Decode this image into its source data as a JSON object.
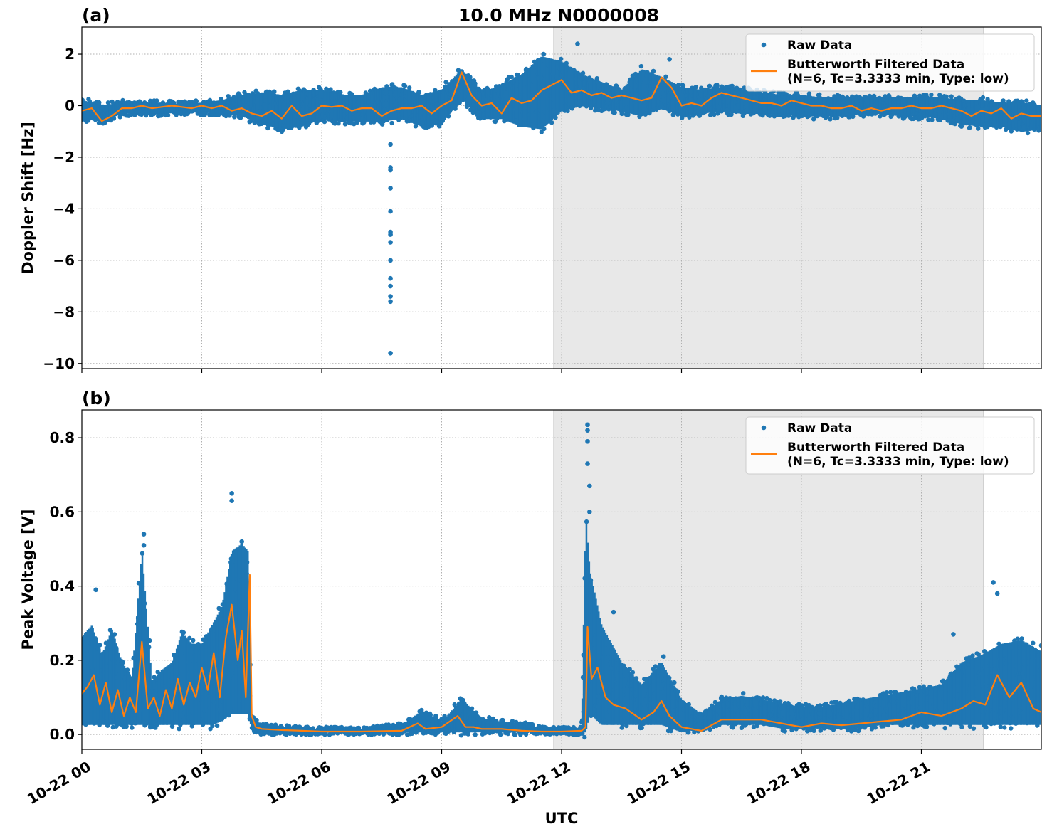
{
  "figure": {
    "title": "10.0 MHz N0000008",
    "xlabel": "UTC"
  },
  "colors": {
    "raw": "#1f77b4",
    "filtered": "#ff7f0e",
    "shade": "#e8e8e8",
    "grid": "#b0b0b0"
  },
  "chart_data": [
    {
      "type": "scatter",
      "panel_label": "(a)",
      "ylabel": "Doppler Shift [Hz]",
      "xlim_hours": [
        0,
        24
      ],
      "ylim": [
        -10.2,
        3.05
      ],
      "yticks": [
        2,
        0,
        -2,
        -4,
        -6,
        -8,
        -10
      ],
      "ytick_labels": [
        "2",
        "0",
        "−2",
        "−4",
        "−6",
        "−8",
        "−10"
      ],
      "xticks_hours": [
        0,
        3,
        6,
        9,
        12,
        15,
        18,
        21
      ],
      "xtick_labels": [
        "",
        "",
        "",
        "",
        "",
        "",
        "",
        ""
      ],
      "shaded_span_hours": [
        11.8,
        22.55
      ],
      "grid": true,
      "legend_position": "upper right",
      "legend": {
        "raw_label": "Raw Data",
        "filtered_label_1": "Butterworth Filtered Data",
        "filtered_label_2": "(N=6, Tc=3.3333 min, Type: low)"
      },
      "series": [
        {
          "name": "Raw Data",
          "kind": "band",
          "x_hours": [
            0,
            0.5,
            1,
            1.5,
            2,
            2.5,
            3,
            3.5,
            4,
            4.5,
            5,
            5.5,
            6,
            6.5,
            7,
            7.5,
            8,
            8.5,
            9,
            9.5,
            10,
            10.5,
            11,
            11.5,
            12,
            12.5,
            13,
            13.5,
            14,
            14.5,
            15,
            15.5,
            16,
            16.5,
            17,
            17.5,
            18,
            18.5,
            19,
            19.5,
            20,
            20.5,
            21,
            21.5,
            22,
            22.5,
            23,
            23.5,
            24
          ],
          "lower": [
            -0.6,
            -0.7,
            -0.4,
            -0.35,
            -0.4,
            -0.35,
            -0.35,
            -0.4,
            -0.5,
            -0.8,
            -1.0,
            -0.9,
            -0.6,
            -0.7,
            -0.7,
            -0.7,
            -0.6,
            -0.9,
            -0.8,
            0.2,
            -0.6,
            -0.6,
            -0.9,
            -1.0,
            -0.3,
            -0.1,
            -0.2,
            -0.3,
            -0.5,
            -0.2,
            -0.5,
            -0.4,
            -0.3,
            -0.4,
            -0.4,
            -0.4,
            -0.5,
            -0.5,
            -0.5,
            -0.4,
            -0.4,
            -0.5,
            -0.5,
            -0.6,
            -0.8,
            -0.9,
            -0.9,
            -1.1,
            -1.0
          ],
          "upper": [
            0.3,
            0.1,
            0.2,
            0.2,
            0.2,
            0.15,
            0.2,
            0.3,
            0.5,
            0.6,
            0.5,
            0.7,
            0.7,
            0.5,
            0.5,
            0.8,
            0.8,
            0.5,
            0.7,
            1.5,
            0.6,
            0.9,
            1.3,
            2.0,
            1.8,
            1.3,
            1.0,
            0.7,
            1.5,
            1.2,
            0.8,
            0.7,
            0.8,
            0.7,
            0.6,
            0.5,
            0.5,
            0.4,
            0.4,
            0.4,
            0.4,
            0.4,
            0.4,
            0.4,
            0.3,
            0.3,
            0.2,
            0.2,
            0.1
          ]
        },
        {
          "name": "Raw Data",
          "kind": "outliers",
          "x_hours": [
            7.72,
            7.72,
            7.72,
            7.72,
            7.72,
            7.72,
            7.72,
            7.72,
            7.72,
            7.72,
            7.72,
            7.72,
            7.72,
            7.72,
            7.72,
            7.72,
            11.55,
            12.4,
            14.7
          ],
          "y": [
            -1.5,
            -2.4,
            -2.5,
            -3.2,
            -4.1,
            -4.9,
            -5.0,
            -5.3,
            -6.0,
            -6.7,
            -7.0,
            -7.4,
            -7.6,
            -9.6,
            -0.2,
            0.5,
            2.0,
            2.4,
            1.8
          ]
        },
        {
          "name": "Butterworth Filtered Data",
          "kind": "line",
          "x_hours": [
            0,
            0.25,
            0.5,
            0.75,
            1,
            1.25,
            1.5,
            1.75,
            2,
            2.25,
            2.5,
            2.75,
            3,
            3.25,
            3.5,
            3.75,
            4,
            4.25,
            4.5,
            4.75,
            5,
            5.25,
            5.5,
            5.75,
            6,
            6.25,
            6.5,
            6.75,
            7,
            7.25,
            7.5,
            7.75,
            8,
            8.25,
            8.5,
            8.75,
            9,
            9.25,
            9.5,
            9.75,
            10,
            10.25,
            10.5,
            10.75,
            11,
            11.25,
            11.5,
            11.75,
            12,
            12.25,
            12.5,
            12.75,
            13,
            13.25,
            13.5,
            13.75,
            14,
            14.25,
            14.5,
            14.75,
            15,
            15.25,
            15.5,
            15.75,
            16,
            16.25,
            16.5,
            16.75,
            17,
            17.25,
            17.5,
            17.75,
            18,
            18.25,
            18.5,
            18.75,
            19,
            19.25,
            19.5,
            19.75,
            20,
            20.25,
            20.5,
            20.75,
            21,
            21.25,
            21.5,
            21.75,
            22,
            22.25,
            22.5,
            22.75,
            23,
            23.25,
            23.5,
            23.75,
            24
          ],
          "y": [
            -0.2,
            -0.1,
            -0.6,
            -0.4,
            -0.1,
            -0.1,
            0.0,
            -0.1,
            -0.05,
            0.0,
            -0.05,
            -0.1,
            0.0,
            -0.1,
            0.0,
            -0.2,
            -0.1,
            -0.3,
            -0.4,
            -0.2,
            -0.5,
            0.0,
            -0.4,
            -0.3,
            0.0,
            -0.05,
            0.0,
            -0.2,
            -0.1,
            -0.1,
            -0.4,
            -0.2,
            -0.1,
            -0.1,
            0.0,
            -0.3,
            0.0,
            0.2,
            1.3,
            0.4,
            0.0,
            0.1,
            -0.3,
            0.3,
            0.1,
            0.2,
            0.6,
            0.8,
            1.0,
            0.5,
            0.6,
            0.4,
            0.5,
            0.3,
            0.4,
            0.3,
            0.2,
            0.3,
            1.1,
            0.7,
            0.0,
            0.1,
            0.0,
            0.3,
            0.5,
            0.4,
            0.3,
            0.2,
            0.1,
            0.1,
            0.0,
            0.2,
            0.1,
            0.0,
            0.0,
            -0.1,
            -0.1,
            0.0,
            -0.2,
            -0.1,
            -0.2,
            -0.1,
            -0.1,
            0.0,
            -0.1,
            -0.1,
            0.0,
            -0.1,
            -0.2,
            -0.4,
            -0.2,
            -0.3,
            -0.1,
            -0.5,
            -0.3,
            -0.4,
            -0.4
          ]
        }
      ]
    },
    {
      "type": "scatter",
      "panel_label": "(b)",
      "ylabel": "Peak Voltage [V]",
      "xlim_hours": [
        0,
        24
      ],
      "ylim": [
        -0.04,
        0.875
      ],
      "yticks": [
        0.0,
        0.2,
        0.4,
        0.6,
        0.8
      ],
      "ytick_labels": [
        "0.0",
        "0.2",
        "0.4",
        "0.6",
        "0.8"
      ],
      "xticks_hours": [
        0,
        3,
        6,
        9,
        12,
        15,
        18,
        21
      ],
      "xtick_labels": [
        "10-22 00",
        "10-22 03",
        "10-22 06",
        "10-22 09",
        "10-22 12",
        "10-22 15",
        "10-22 18",
        "10-22 21"
      ],
      "shaded_span_hours": [
        11.8,
        22.55
      ],
      "grid": true,
      "legend_position": "upper right",
      "legend": {
        "raw_label": "Raw Data",
        "filtered_label_1": "Butterworth Filtered Data",
        "filtered_label_2": "(N=6, Tc=3.3333 min, Type: low)"
      },
      "series": [
        {
          "name": "Raw Data",
          "kind": "band",
          "x_hours": [
            0,
            0.25,
            0.5,
            0.75,
            1,
            1.25,
            1.5,
            1.75,
            2,
            2.25,
            2.5,
            2.75,
            3,
            3.25,
            3.5,
            3.75,
            4,
            4.15,
            4.25,
            4.5,
            5,
            5.5,
            6,
            7,
            8,
            8.5,
            9,
            9.5,
            10,
            10.5,
            11,
            11.5,
            12,
            12.5,
            12.6,
            12.7,
            13,
            13.5,
            14,
            14.5,
            15,
            15.5,
            16,
            16.5,
            17,
            17.5,
            18,
            18.5,
            19,
            19.5,
            20,
            20.5,
            21,
            21.5,
            22,
            22.5,
            23,
            23.5,
            24
          ],
          "lower": [
            0.02,
            0.02,
            0.02,
            0.02,
            0.02,
            0.02,
            0.02,
            0.02,
            0.02,
            0.02,
            0.02,
            0.02,
            0.02,
            0.02,
            0.03,
            0.05,
            0.05,
            0.05,
            0.01,
            0.0,
            0.0,
            0.0,
            0.0,
            0.0,
            0.0,
            0.0,
            0.0,
            0.0,
            0.0,
            0.0,
            0.0,
            0.0,
            0.0,
            0.0,
            0.0,
            0.05,
            0.02,
            0.02,
            0.02,
            0.02,
            0.0,
            0.01,
            0.02,
            0.02,
            0.02,
            0.01,
            0.01,
            0.01,
            0.01,
            0.01,
            0.02,
            0.02,
            0.02,
            0.02,
            0.02,
            0.02,
            0.02,
            0.02,
            0.02
          ],
          "upper": [
            0.27,
            0.3,
            0.22,
            0.29,
            0.2,
            0.16,
            0.5,
            0.15,
            0.18,
            0.2,
            0.28,
            0.25,
            0.25,
            0.3,
            0.35,
            0.5,
            0.52,
            0.5,
            0.05,
            0.03,
            0.025,
            0.02,
            0.02,
            0.02,
            0.03,
            0.07,
            0.04,
            0.1,
            0.05,
            0.04,
            0.035,
            0.02,
            0.02,
            0.02,
            0.6,
            0.45,
            0.3,
            0.2,
            0.14,
            0.2,
            0.1,
            0.06,
            0.1,
            0.11,
            0.1,
            0.09,
            0.08,
            0.08,
            0.09,
            0.1,
            0.11,
            0.12,
            0.13,
            0.14,
            0.2,
            0.22,
            0.25,
            0.26,
            0.23
          ]
        },
        {
          "name": "Raw Data",
          "kind": "outliers",
          "x_hours": [
            0.35,
            1.55,
            1.55,
            3.75,
            3.75,
            4.0,
            12.65,
            12.65,
            12.65,
            12.65,
            12.7,
            12.7,
            13.3,
            14.55,
            21.8,
            22.8,
            22.9,
            24.0
          ],
          "y": [
            0.39,
            0.54,
            0.51,
            0.65,
            0.63,
            0.52,
            0.835,
            0.82,
            0.79,
            0.73,
            0.67,
            0.6,
            0.33,
            0.21,
            0.27,
            0.41,
            0.38,
            0.24
          ]
        },
        {
          "name": "Butterworth Filtered Data",
          "kind": "line",
          "x_hours": [
            0,
            0.15,
            0.3,
            0.45,
            0.6,
            0.75,
            0.9,
            1.05,
            1.2,
            1.35,
            1.5,
            1.65,
            1.8,
            1.95,
            2.1,
            2.25,
            2.4,
            2.55,
            2.7,
            2.85,
            3.0,
            3.15,
            3.3,
            3.45,
            3.6,
            3.75,
            3.9,
            4.0,
            4.1,
            4.2,
            4.25,
            4.35,
            4.5,
            5,
            5.5,
            6,
            7,
            8,
            8.4,
            8.6,
            9,
            9.4,
            9.6,
            9.8,
            10,
            10.5,
            11,
            11.5,
            12,
            12.5,
            12.6,
            12.65,
            12.75,
            12.9,
            13.1,
            13.3,
            13.6,
            14,
            14.3,
            14.5,
            14.7,
            15,
            15.5,
            16,
            16.5,
            17,
            17.5,
            18,
            18.5,
            19,
            19.5,
            20,
            20.5,
            21,
            21.5,
            22,
            22.3,
            22.6,
            22.9,
            23.2,
            23.5,
            23.8,
            24
          ],
          "y": [
            0.11,
            0.13,
            0.16,
            0.08,
            0.14,
            0.06,
            0.12,
            0.05,
            0.1,
            0.06,
            0.25,
            0.07,
            0.1,
            0.05,
            0.12,
            0.07,
            0.15,
            0.08,
            0.14,
            0.1,
            0.18,
            0.12,
            0.22,
            0.1,
            0.26,
            0.35,
            0.2,
            0.28,
            0.1,
            0.43,
            0.05,
            0.02,
            0.015,
            0.012,
            0.01,
            0.008,
            0.008,
            0.01,
            0.03,
            0.015,
            0.02,
            0.05,
            0.02,
            0.02,
            0.015,
            0.015,
            0.01,
            0.008,
            0.008,
            0.01,
            0.02,
            0.29,
            0.15,
            0.18,
            0.1,
            0.08,
            0.07,
            0.04,
            0.06,
            0.09,
            0.05,
            0.02,
            0.01,
            0.04,
            0.04,
            0.04,
            0.03,
            0.02,
            0.03,
            0.025,
            0.03,
            0.035,
            0.04,
            0.06,
            0.05,
            0.07,
            0.09,
            0.08,
            0.16,
            0.1,
            0.14,
            0.07,
            0.06
          ]
        }
      ]
    }
  ]
}
